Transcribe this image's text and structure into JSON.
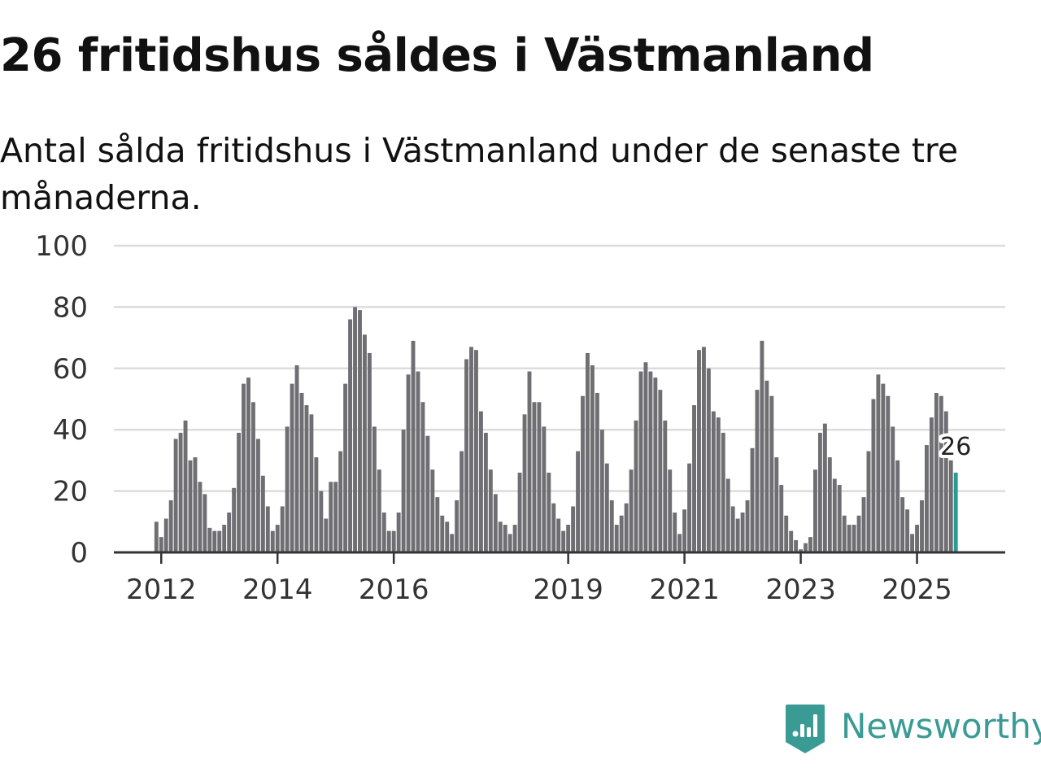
{
  "title": "26 fritidshus såldes i Västmanland",
  "subtitle": "Antal sålda fritidshus i Västmanland under de senaste tre månaderna.",
  "brand": {
    "name": "Newsworthy"
  },
  "colors": {
    "bar": "#6f6e73",
    "highlight": "#279c95",
    "grid": "#dcdcdc",
    "axis": "#333333",
    "brand": "#3a9b95"
  },
  "chart_data": {
    "type": "bar",
    "title": "26 fritidshus såldes i Västmanland",
    "xlabel": "",
    "ylabel": "",
    "ylim": [
      0,
      100
    ],
    "yticks": [
      0,
      20,
      40,
      60,
      80,
      100
    ],
    "start": "2011-12",
    "xticks": [
      "2012",
      "2014",
      "2016",
      "2019",
      "2021",
      "2023",
      "2025"
    ],
    "highlight_label": "26",
    "values": [
      10,
      5,
      11,
      17,
      37,
      39,
      43,
      30,
      31,
      23,
      19,
      8,
      7,
      7,
      9,
      13,
      21,
      39,
      55,
      57,
      49,
      37,
      25,
      15,
      7,
      9,
      15,
      41,
      55,
      61,
      52,
      48,
      45,
      31,
      20,
      11,
      23,
      23,
      33,
      55,
      76,
      80,
      79,
      71,
      65,
      41,
      27,
      13,
      7,
      7,
      13,
      40,
      58,
      69,
      59,
      49,
      38,
      27,
      18,
      12,
      10,
      6,
      17,
      33,
      63,
      67,
      66,
      46,
      39,
      27,
      19,
      10,
      9,
      6,
      9,
      26,
      45,
      59,
      49,
      49,
      41,
      26,
      16,
      11,
      7,
      9,
      15,
      33,
      51,
      65,
      61,
      52,
      40,
      29,
      17,
      9,
      12,
      16,
      27,
      43,
      59,
      62,
      59,
      57,
      53,
      43,
      27,
      13,
      6,
      14,
      29,
      48,
      66,
      67,
      60,
      46,
      44,
      39,
      24,
      15,
      11,
      13,
      17,
      34,
      53,
      69,
      56,
      51,
      31,
      22,
      12,
      7,
      4,
      1,
      3,
      5,
      27,
      39,
      42,
      31,
      24,
      22,
      12,
      9,
      9,
      12,
      18,
      33,
      50,
      58,
      55,
      51,
      41,
      30,
      18,
      14,
      6,
      9,
      17,
      35,
      44,
      52,
      51,
      46,
      30,
      26
    ]
  }
}
